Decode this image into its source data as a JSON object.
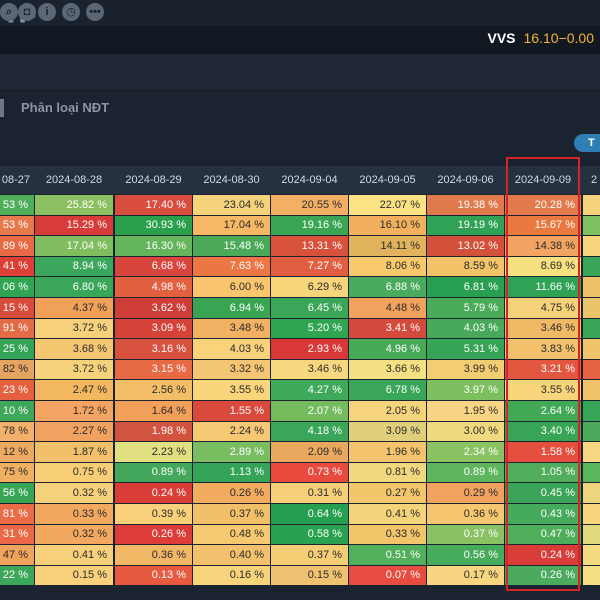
{
  "toolbar": {
    "icons": [
      "search-icon",
      "gift-icon",
      "info-icon",
      "clock-icon",
      "more-icon"
    ],
    "glyphs": [
      "⌕",
      "◘",
      "i",
      "◷",
      "•••"
    ]
  },
  "player": {
    "pause_glyph": "❚❚",
    "skip_glyph": "⏭"
  },
  "ticker": {
    "symbol": "VVS",
    "price": "16.10",
    "change": "−0.00"
  },
  "tab": {
    "label": "Phân loại NĐT"
  },
  "pill": {
    "label": "T"
  },
  "table": {
    "headers": [
      "08-27",
      "2024-08-28",
      "2024-08-29",
      "2024-08-30",
      "2024-09-04",
      "2024-09-05",
      "2024-09-06",
      "2024-09-09",
      "2"
    ],
    "rows": [
      [
        "53 %",
        "25.82 %",
        "17.40 %",
        "23.04 %",
        "20.55 %",
        "22.07 %",
        "19.38 %",
        "20.28 %",
        ""
      ],
      [
        "53 %",
        "15.29 %",
        "30.93 %",
        "17.04 %",
        "19.16 %",
        "16.10 %",
        "19.19 %",
        "15.67 %",
        ""
      ],
      [
        "89 %",
        "17.04 %",
        "16.30 %",
        "15.48 %",
        "13.31 %",
        "14.11 %",
        "13.02 %",
        "14.38 %",
        ""
      ],
      [
        "41 %",
        "8.94 %",
        "6.68 %",
        "7.63 %",
        "7.27 %",
        "8.06 %",
        "8.59 %",
        "8.69 %",
        ""
      ],
      [
        "06 %",
        "6.80 %",
        "4.98 %",
        "6.00 %",
        "6.29 %",
        "6.88 %",
        "6.81 %",
        "11.66 %",
        ""
      ],
      [
        "15 %",
        "4.37 %",
        "3.62 %",
        "6.94 %",
        "6.45 %",
        "4.48 %",
        "5.79 %",
        "4.75 %",
        ""
      ],
      [
        "91 %",
        "3.72 %",
        "3.09 %",
        "3.48 %",
        "5.20 %",
        "3.41 %",
        "4.03 %",
        "3.46 %",
        ""
      ],
      [
        "25 %",
        "3.68 %",
        "3.16 %",
        "4.03 %",
        "2.93 %",
        "4.96 %",
        "5.31 %",
        "3.83 %",
        ""
      ],
      [
        "82 %",
        "3.72 %",
        "3.15 %",
        "3.32 %",
        "3.46 %",
        "3.66 %",
        "3.99 %",
        "3.21 %",
        ""
      ],
      [
        "23 %",
        "2.47 %",
        "2.56 %",
        "3.55 %",
        "4.27 %",
        "6.78 %",
        "3.97 %",
        "3.55 %",
        ""
      ],
      [
        "10 %",
        "1.72 %",
        "1.64 %",
        "1.55 %",
        "2.07 %",
        "2.05 %",
        "1.95 %",
        "2.64 %",
        ""
      ],
      [
        "78 %",
        "2.27 %",
        "1.98 %",
        "2.24 %",
        "4.18 %",
        "3.09 %",
        "3.00 %",
        "3.40 %",
        ""
      ],
      [
        "12 %",
        "1.87 %",
        "2.23 %",
        "2.89 %",
        "2.09 %",
        "1.96 %",
        "2.34 %",
        "1.58 %",
        ""
      ],
      [
        "75 %",
        "0.75 %",
        "0.89 %",
        "1.13 %",
        "0.73 %",
        "0.81 %",
        "0.89 %",
        "1.05 %",
        ""
      ],
      [
        "56 %",
        "0.32 %",
        "0.24 %",
        "0.26 %",
        "0.31 %",
        "0.27 %",
        "0.29 %",
        "0.45 %",
        ""
      ],
      [
        "81 %",
        "0.33 %",
        "0.39 %",
        "0.37 %",
        "0.64 %",
        "0.41 %",
        "0.36 %",
        "0.43 %",
        ""
      ],
      [
        "31 %",
        "0.32 %",
        "0.26 %",
        "0.48 %",
        "0.58 %",
        "0.33 %",
        "0.37 %",
        "0.47 %",
        ""
      ],
      [
        "47 %",
        "0.41 %",
        "0.36 %",
        "0.40 %",
        "0.37 %",
        "0.51 %",
        "0.56 %",
        "0.24 %",
        ""
      ],
      [
        "22 %",
        "0.15 %",
        "0.13 %",
        "0.16 %",
        "0.15 %",
        "0.07 %",
        "0.17 %",
        "0.26 %",
        ""
      ]
    ],
    "colors": [
      [
        "#4fae5a",
        "#8cc060",
        "#d84d3e",
        "#f4d37a",
        "#f3b065",
        "#fbe383",
        "#e07a4c",
        "#e37a4d",
        "#f4d37a"
      ],
      [
        "#e67a4c",
        "#d83c3a",
        "#2aa04d",
        "#f6b864",
        "#3aa654",
        "#f2b05e",
        "#30a256",
        "#e9793f",
        "#7fc160"
      ],
      [
        "#e86a44",
        "#7fbd5e",
        "#65b55d",
        "#4aaa59",
        "#d8523b",
        "#e2b35d",
        "#d3513a",
        "#f2a462",
        "#f5d47c"
      ],
      [
        "#db3f35",
        "#3aa75c",
        "#d8453c",
        "#ec7745",
        "#e25e42",
        "#f8c96d",
        "#f3c369",
        "#f6e080",
        "#3aa559"
      ],
      [
        "#2fa453",
        "#3aa65a",
        "#e0603f",
        "#f9c66f",
        "#f6d57b",
        "#4aaa5e",
        "#29a051",
        "#30a256",
        "#f0c16b"
      ],
      [
        "#d84a3a",
        "#f1a057",
        "#cf3d38",
        "#39a553",
        "#3aa658",
        "#f2a25d",
        "#4aab58",
        "#f5d27a",
        "#eac36a"
      ],
      [
        "#e36b45",
        "#f6d07a",
        "#d44238",
        "#f2b163",
        "#2fa552",
        "#d44b3d",
        "#48a95a",
        "#f0b965",
        "#39a556"
      ],
      [
        "#33a455",
        "#f5c771",
        "#d8503e",
        "#f8d37a",
        "#d93738",
        "#48a956",
        "#36a457",
        "#f3c16c",
        "#f0c46b"
      ],
      [
        "#e5a460",
        "#f6d27a",
        "#e86a44",
        "#f4c572",
        "#f7d87e",
        "#f4e183",
        "#f2cd72",
        "#e3563f",
        "#e66444"
      ],
      [
        "#e5603f",
        "#f2b75f",
        "#f3be68",
        "#f9d57c",
        "#3faa59",
        "#3aa65a",
        "#7dbf5e",
        "#f8d57b",
        "#eec36a"
      ],
      [
        "#3ea75a",
        "#f4a564",
        "#f19f59",
        "#d94a3c",
        "#73bb5d",
        "#f5d47c",
        "#f7d584",
        "#41a956",
        "#36a557"
      ],
      [
        "#f2b06a",
        "#f2a260",
        "#d2533e",
        "#f6c874",
        "#3aa659",
        "#e0d07c",
        "#f1d980",
        "#38a455",
        "#4baa5b"
      ],
      [
        "#ecaa60",
        "#f2c06b",
        "#e0e081",
        "#78bd60",
        "#e8a85d",
        "#f3c36e",
        "#8bc262",
        "#e44f3e",
        "#f6d783"
      ],
      [
        "#f1b061",
        "#f7cd76",
        "#43a75c",
        "#34a458",
        "#e84b3d",
        "#f1d77d",
        "#5fb55e",
        "#4fad5b",
        "#5ab65b"
      ],
      [
        "#38a556",
        "#f6d17b",
        "#d93d38",
        "#f2ab5f",
        "#f6cf78",
        "#f3c66c",
        "#f1a25f",
        "#3ba458",
        "#ecd57d"
      ],
      [
        "#e96c47",
        "#f3a860",
        "#f8d17a",
        "#f2c068",
        "#279f50",
        "#f4d47a",
        "#f6c770",
        "#45aa5b",
        "#f6d57d"
      ],
      [
        "#ea6846",
        "#f2a95f",
        "#dd3c39",
        "#f6c86f",
        "#2aa150",
        "#f2c56b",
        "#89c163",
        "#4fae5c",
        "#e1d77d"
      ],
      [
        "#f0a35b",
        "#f6d07a",
        "#f3b866",
        "#f3c16d",
        "#f5cd74",
        "#52af5b",
        "#46ab5b",
        "#d83d38",
        "#f5db80"
      ],
      [
        "#3aa75a",
        "#f9d17b",
        "#e65b40",
        "#f7d37b",
        "#f0c170",
        "#e64c3f",
        "#f8d681",
        "#4baa5d",
        "#f7df84"
      ]
    ]
  }
}
